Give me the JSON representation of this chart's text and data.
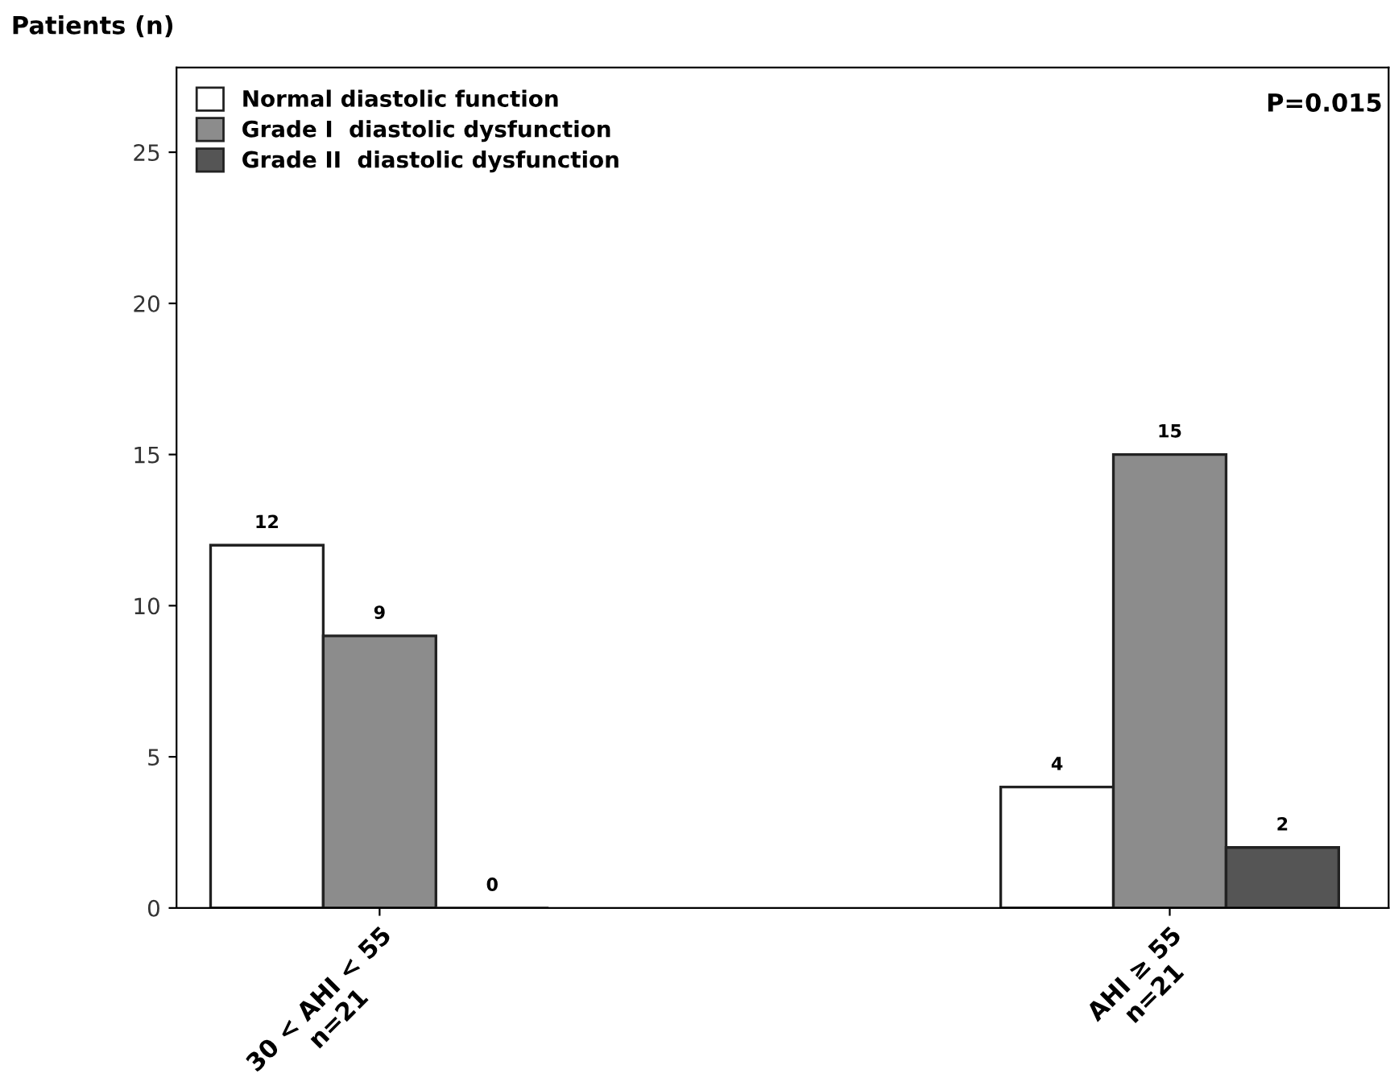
{
  "chart_data": {
    "type": "bar",
    "ylabel": "Patients (n)",
    "categories": [
      "30 < AHI < 55\nn=21",
      "AHI ≥ 55\nn=21"
    ],
    "series": [
      {
        "name": "Normal diastolic function",
        "color": "#ffffff",
        "values": [
          12,
          4
        ]
      },
      {
        "name": "Grade I  diastolic dysfunction",
        "color": "#8c8c8c",
        "values": [
          9,
          15
        ]
      },
      {
        "name": "Grade II  diastolic dysfunction",
        "color": "#555555",
        "values": [
          0,
          2
        ]
      }
    ],
    "ylim": [
      0,
      27.8
    ],
    "yticks": [
      0,
      5,
      10,
      15,
      20,
      25
    ],
    "data_labels": true,
    "grid": false,
    "legend": "top left",
    "annotations": [
      "P=0.015"
    ]
  }
}
